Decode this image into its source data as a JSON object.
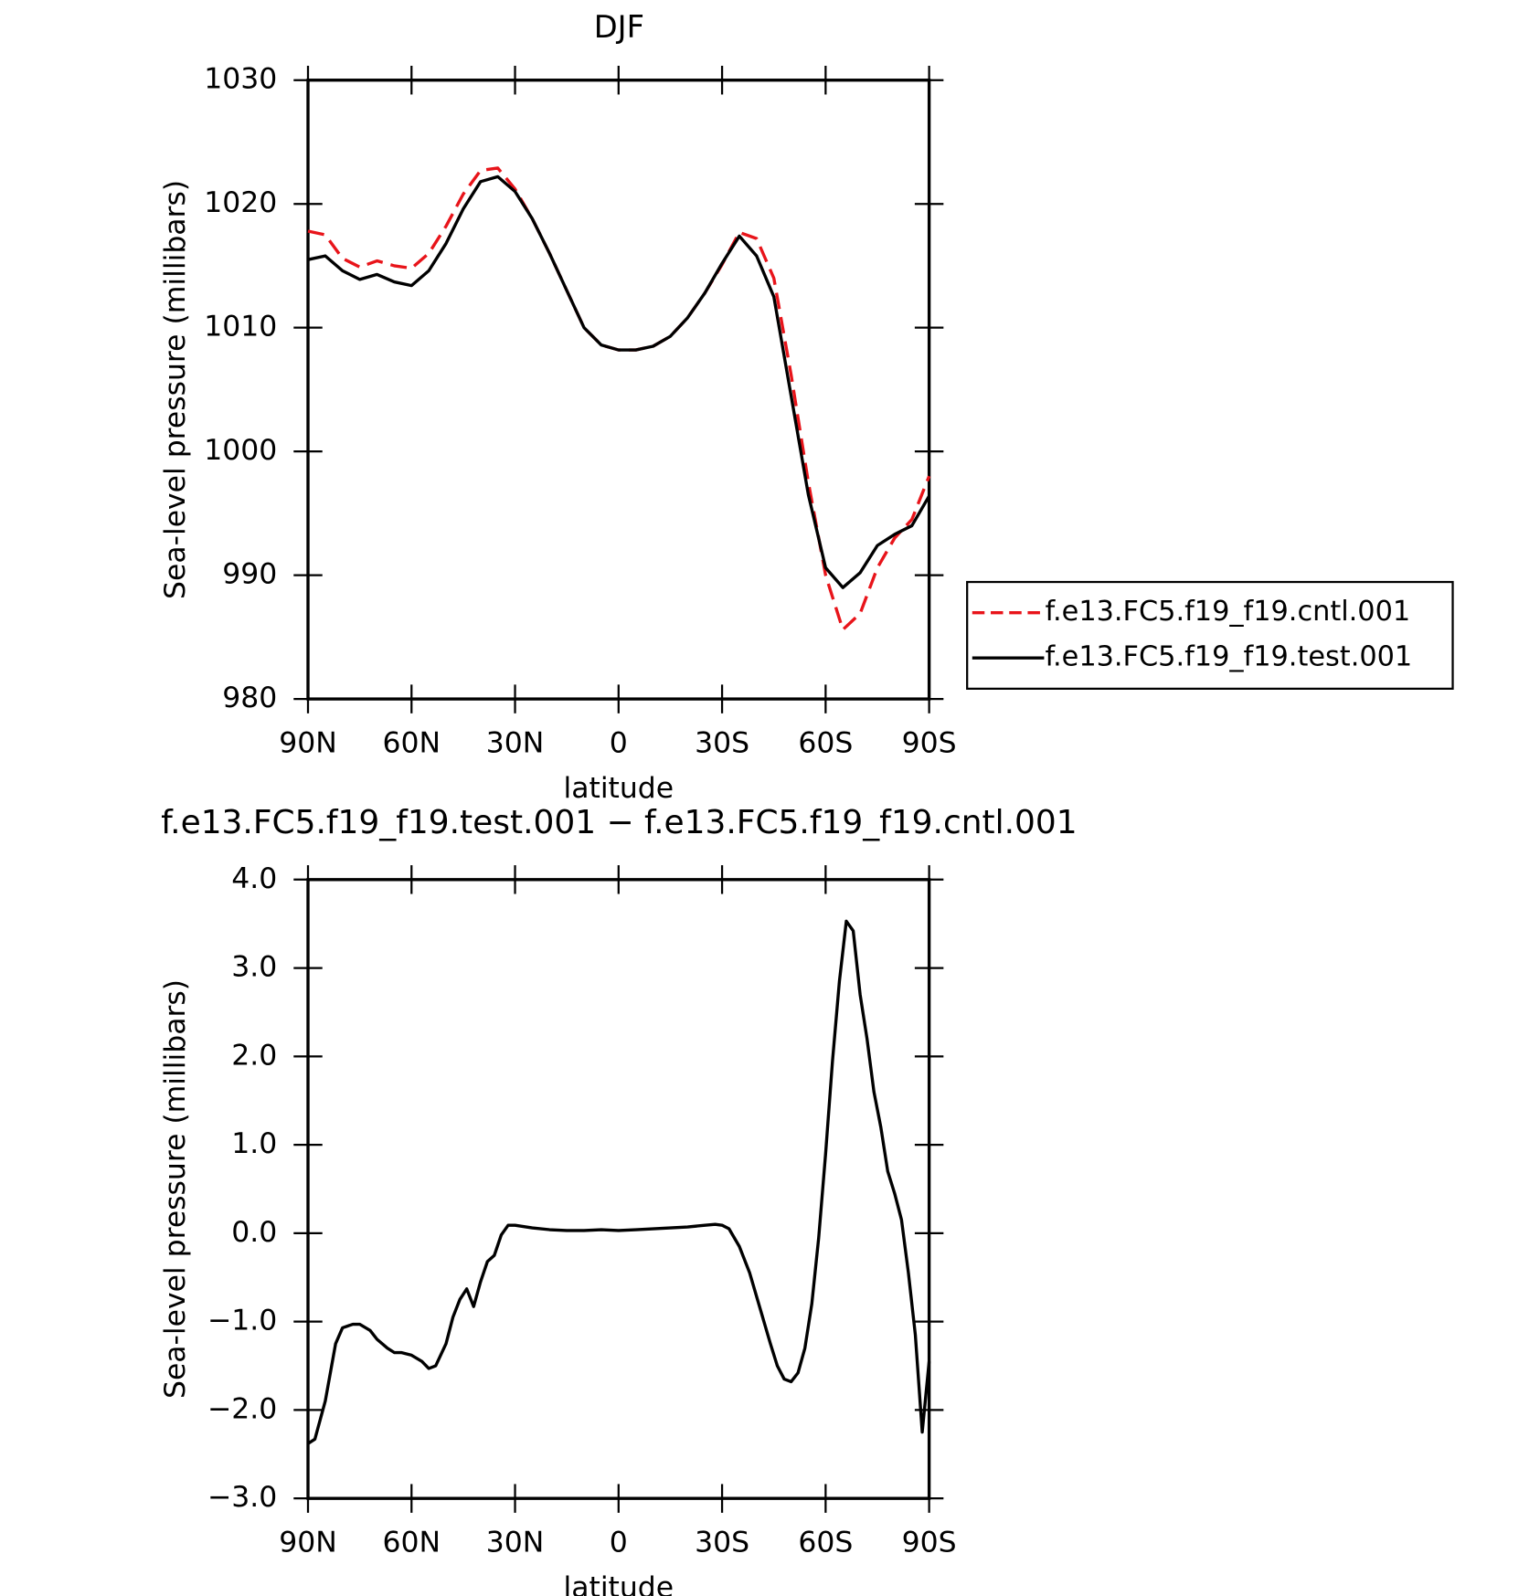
{
  "chart_data": [
    {
      "type": "line",
      "title": "DJF",
      "xlabel": "latitude",
      "ylabel": "Sea-level pressure (millibars)",
      "x": [
        90,
        85,
        80,
        75,
        70,
        65,
        60,
        55,
        50,
        45,
        40,
        35,
        30,
        25,
        20,
        15,
        10,
        5,
        0,
        -5,
        -10,
        -15,
        -20,
        -25,
        -30,
        -35,
        -40,
        -45,
        -50,
        -55,
        -60,
        -65,
        -70,
        -75,
        -80,
        -85,
        -90
      ],
      "xlim": [
        90,
        -90
      ],
      "xticks": [
        {
          "value": 90,
          "label": "90N"
        },
        {
          "value": 60,
          "label": "60N"
        },
        {
          "value": 30,
          "label": "30N"
        },
        0,
        {
          "value": -30,
          "label": "30S"
        },
        {
          "value": -60,
          "label": "60S"
        },
        {
          "value": -90,
          "label": "90S"
        }
      ],
      "ylim": [
        980,
        1030
      ],
      "yticks": [
        980,
        990,
        1000,
        1010,
        1020,
        1030
      ],
      "legend": "right",
      "series": [
        {
          "name": "f.e13.FC5.f19_f19.cntl.001",
          "color": "#e8141a",
          "linestyle": "dashed",
          "values": [
            1017.8,
            1017.5,
            1015.6,
            1014.9,
            1015.4,
            1015.0,
            1014.8,
            1016.0,
            1018.2,
            1020.8,
            1022.7,
            1022.9,
            1021.2,
            1018.8,
            1016.0,
            1013.0,
            1010.0,
            1008.6,
            1008.2,
            1008.2,
            1008.5,
            1009.3,
            1010.8,
            1012.8,
            1015.1,
            1017.7,
            1017.2,
            1014.0,
            1006.2,
            997.5,
            990.0,
            985.6,
            986.9,
            990.6,
            993.0,
            994.5,
            998.0
          ]
        },
        {
          "name": "f.e13.FC5.f19_f19.test.001",
          "color": "#000000",
          "linestyle": "solid",
          "values": [
            1015.5,
            1015.8,
            1014.6,
            1013.9,
            1014.3,
            1013.7,
            1013.4,
            1014.6,
            1016.8,
            1019.6,
            1021.8,
            1022.2,
            1021.0,
            1018.8,
            1016.0,
            1013.0,
            1010.0,
            1008.6,
            1008.2,
            1008.2,
            1008.5,
            1009.3,
            1010.8,
            1012.8,
            1015.2,
            1017.4,
            1015.8,
            1012.5,
            1004.5,
            996.5,
            990.6,
            989.0,
            990.2,
            992.4,
            993.3,
            994.0,
            996.4
          ]
        }
      ]
    },
    {
      "type": "line",
      "title": "f.e13.FC5.f19_f19.test.001 − f.e13.FC5.f19_f19.cntl.001",
      "xlabel": "latitude",
      "ylabel": "Sea-level pressure (millibars)",
      "x": [
        90,
        88,
        85,
        82,
        80,
        77,
        75,
        72,
        70,
        67,
        65,
        63,
        60,
        57,
        55,
        53,
        50,
        48,
        46,
        44,
        42,
        40,
        38,
        36,
        34,
        32,
        30,
        25,
        20,
        15,
        10,
        5,
        0,
        -5,
        -10,
        -15,
        -20,
        -25,
        -28,
        -30,
        -32,
        -35,
        -38,
        -41,
        -44,
        -46,
        -48,
        -50,
        -52,
        -54,
        -56,
        -58,
        -60,
        -62,
        -64,
        -66,
        -68,
        -70,
        -72,
        -74,
        -76,
        -78,
        -80,
        -82,
        -84,
        -86,
        -88,
        -90
      ],
      "xlim": [
        90,
        -90
      ],
      "xticks": [
        {
          "value": 90,
          "label": "90N"
        },
        {
          "value": 60,
          "label": "60N"
        },
        {
          "value": 30,
          "label": "30N"
        },
        0,
        {
          "value": -30,
          "label": "30S"
        },
        {
          "value": -60,
          "label": "60S"
        },
        {
          "value": -90,
          "label": "90S"
        }
      ],
      "ylim": [
        -3,
        4
      ],
      "yticks": [
        {
          "value": -3,
          "label": "−3.0"
        },
        {
          "value": -2,
          "label": "−2.0"
        },
        {
          "value": -1,
          "label": "−1.0"
        },
        {
          "value": 0,
          "label": "0.0"
        },
        {
          "value": 1,
          "label": "1.0"
        },
        {
          "value": 2,
          "label": "2.0"
        },
        {
          "value": 3,
          "label": "3.0"
        },
        {
          "value": 4,
          "label": "4.0"
        }
      ],
      "color": "#000000",
      "values": [
        -2.38,
        -2.33,
        -1.9,
        -1.25,
        -1.07,
        -1.03,
        -1.03,
        -1.1,
        -1.2,
        -1.3,
        -1.35,
        -1.35,
        -1.38,
        -1.45,
        -1.53,
        -1.5,
        -1.25,
        -0.95,
        -0.75,
        -0.63,
        -0.83,
        -0.55,
        -0.32,
        -0.25,
        -0.02,
        0.09,
        0.09,
        0.06,
        0.04,
        0.03,
        0.03,
        0.04,
        0.03,
        0.04,
        0.05,
        0.06,
        0.07,
        0.09,
        0.1,
        0.09,
        0.05,
        -0.15,
        -0.45,
        -0.85,
        -1.25,
        -1.5,
        -1.65,
        -1.68,
        -1.58,
        -1.3,
        -0.8,
        -0.05,
        0.9,
        1.95,
        2.85,
        3.53,
        3.42,
        2.7,
        2.2,
        1.6,
        1.2,
        0.7,
        0.45,
        0.15,
        -0.45,
        -1.15,
        -2.25,
        -1.45
      ]
    }
  ]
}
